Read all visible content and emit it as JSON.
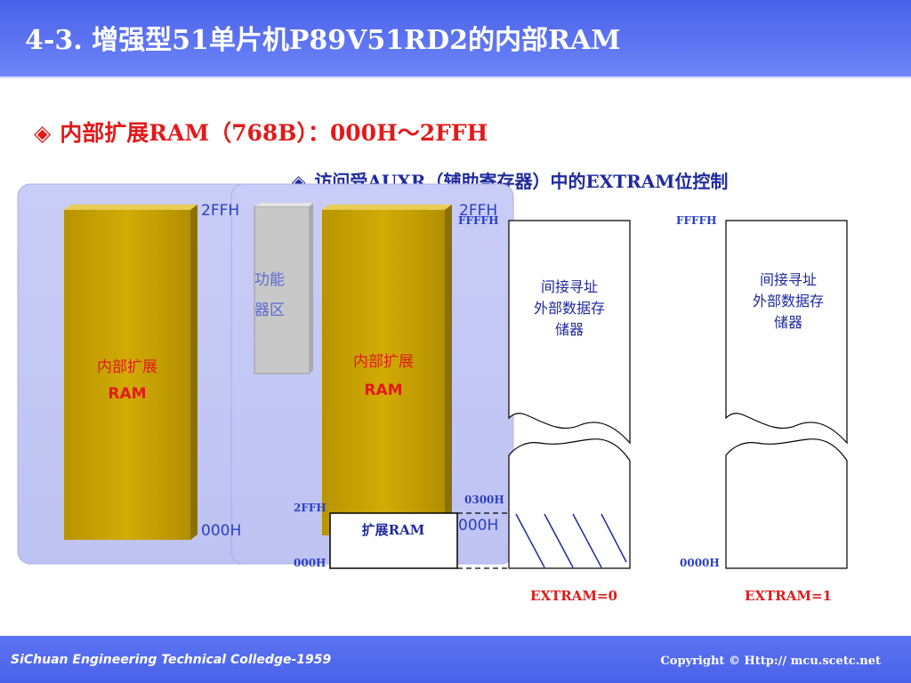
{
  "header": {
    "title": "4-3. 增强型51单片机P89V51RD2的内部RAM"
  },
  "bullets": {
    "bullet_symbol": "◈",
    "main": "内部扩展RAM（768B）：000H～2FFH",
    "sub": "访问受AUXR（辅助寄存器）中的EXTRAM位控制"
  },
  "left_block": {
    "ram_label_line1": "内部扩展",
    "ram_label_line2": "RAM",
    "top_addr": "2FFH",
    "bottom_addr": "000H",
    "sfr_partial_line1": "功能",
    "sfr_partial_line2": "器区"
  },
  "middle_block": {
    "ram_label_line1": "内部扩展",
    "ram_label_line2": "RAM",
    "top_addr": "2FFH",
    "bottom_addr": "000H",
    "overlay_top_addr": "FFFFH",
    "ext_box_label": "扩展RAM",
    "ext_top_addr": "2FFH",
    "ext_bottom_addr": "000H",
    "mark_0300": "0300H"
  },
  "extram0": {
    "top_addr": "FFFFH",
    "text_line1": "间接寻址",
    "text_line2": "外部数据存",
    "text_line3": "储器",
    "caption": "EXTRAM=0"
  },
  "extram1": {
    "top_addr": "FFFFH",
    "bottom_addr": "0000H",
    "text_line1": "间接寻址",
    "text_line2": "外部数据存",
    "text_line3": "储器",
    "caption": "EXTRAM=1"
  },
  "footer": {
    "left": "SiChuan Engineering Technical Colledge-1959",
    "right": "Copyright © Http:// mcu.scetc.net"
  },
  "colors": {
    "header_blue": "#5068ee",
    "ram_gold": "#c8a200",
    "ram_gold_dark": "#8a7000",
    "panel_lavender": "#c4c8f4",
    "accent_red": "#e21a1a",
    "text_blue": "#1f2a9e",
    "addr_blue": "#2a3fc4"
  }
}
